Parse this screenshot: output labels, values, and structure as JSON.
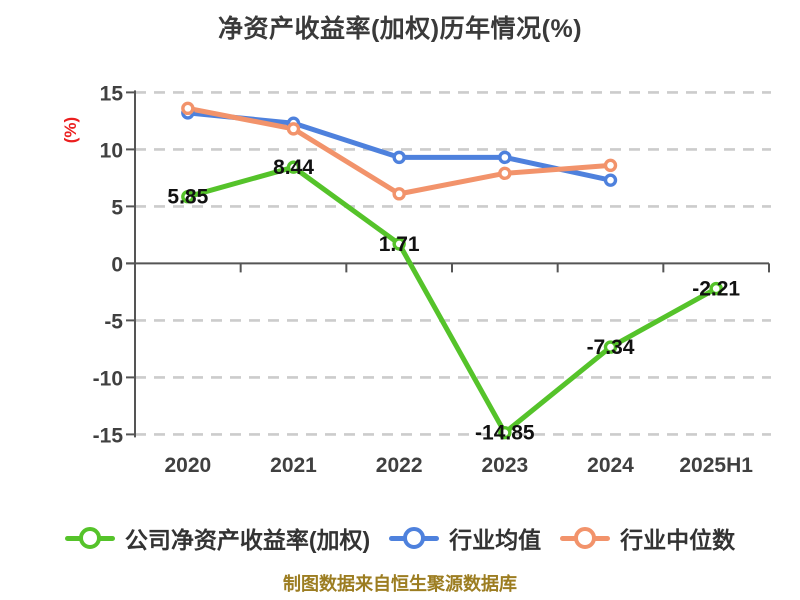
{
  "title": "净资产收益率(加权)历年情况(%)",
  "footer": "制图数据来自恒生聚源数据库",
  "colors": {
    "company_green": "#55c32a",
    "industry_blue": "#4e81dd",
    "median_orange": "#f2936b",
    "title_text": "#3a3a3a",
    "tick_text": "#404040",
    "axis_line": "#555555",
    "gridline": "#cccccc",
    "value_label": "#111111",
    "y_axis_name_red": "#eb1f1f",
    "footer_gold": "#9c7d21",
    "background": "#ffffff"
  },
  "chart_data": {
    "type": "line",
    "title": "净资产收益率(加权)历年情况(%)",
    "xlabel": "",
    "ylabel": "(%)",
    "categories": [
      "2020",
      "2021",
      "2022",
      "2023",
      "2024",
      "2025H1"
    ],
    "series": [
      {
        "name": "公司净资产收益率(加权)",
        "color": "#55c32a",
        "values": [
          5.85,
          8.44,
          1.71,
          -14.85,
          -7.34,
          -2.21
        ],
        "point_labels": [
          "5.85",
          "8.44",
          "1.71",
          "-14.85",
          "-7.34",
          "-2.21"
        ]
      },
      {
        "name": "行业均值",
        "color": "#4e81dd",
        "values": [
          13.2,
          12.3,
          9.3,
          9.3,
          7.3,
          null
        ],
        "point_labels": null
      },
      {
        "name": "行业中位数",
        "color": "#f2936b",
        "values": [
          13.6,
          11.8,
          6.1,
          7.9,
          8.6,
          null
        ],
        "point_labels": null
      }
    ],
    "ylim": [
      -15,
      15
    ],
    "yticks": [
      15,
      10,
      5,
      0,
      -5,
      -10,
      -15
    ],
    "grid": "horizontal dashed",
    "legend_position": "bottom",
    "marker_style": "white-filled circle with colored ring"
  },
  "legend": {
    "items": [
      {
        "label": "公司净资产收益率(加权)",
        "color": "#55c32a"
      },
      {
        "label": "行业均值",
        "color": "#4e81dd"
      },
      {
        "label": "行业中位数",
        "color": "#f2936b"
      }
    ]
  }
}
